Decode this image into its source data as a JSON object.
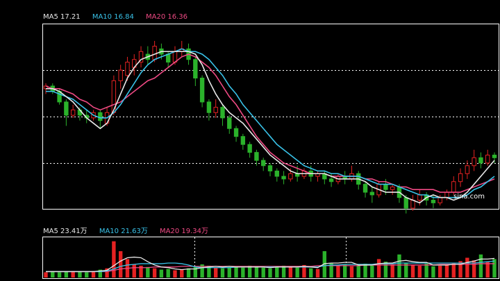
{
  "price_legend": [
    {
      "label": "MA5 17.21",
      "color": "#e8e8e8"
    },
    {
      "label": "MA10 16.84",
      "color": "#39c2e8"
    },
    {
      "label": "MA20 16.36",
      "color": "#ef4a84"
    }
  ],
  "volume_legend": [
    {
      "label": "MA5 23.41万",
      "color": "#e8e8e8"
    },
    {
      "label": "MA10 21.63万",
      "color": "#39c2e8"
    },
    {
      "label": "MA20 19.34万",
      "color": "#ef4a84"
    }
  ],
  "watermark": "sina.com",
  "colors": {
    "background": "#000000",
    "up": "#e52222",
    "down": "#2bb22b",
    "frame": "#ffffff",
    "ma5": "#e8e8e8",
    "ma10": "#39c2e8",
    "ma20": "#ef4a84"
  },
  "chart_data": [
    {
      "type": "candlestick",
      "title": "",
      "ylim": [
        12.0,
        18.9
      ],
      "grid": "horizontal dotted",
      "series": [
        {
          "name": "MA5",
          "values": [
            16.5,
            16.5,
            16.4,
            16.2,
            16.0,
            15.7,
            15.4,
            15.2,
            15.0,
            15.2,
            15.7,
            16.3,
            16.9,
            17.3,
            17.6,
            17.7,
            17.8,
            17.9,
            17.9,
            17.9,
            17.9,
            17.9,
            17.8,
            17.4,
            16.8,
            16.3,
            15.9,
            15.6,
            15.4,
            15.2,
            14.9,
            14.6,
            14.3,
            14.0,
            13.8,
            13.6,
            13.4,
            13.3,
            13.3,
            13.3,
            13.3,
            13.3,
            13.2,
            13.1,
            13.1,
            13.1,
            13.1,
            13.0,
            12.8,
            12.7,
            12.6,
            12.6,
            12.6,
            12.4,
            12.3,
            12.2,
            12.4,
            12.5,
            12.4,
            12.4,
            12.3,
            12.4,
            12.6,
            12.9,
            13.2,
            13.5,
            13.8
          ]
        },
        {
          "name": "MA10",
          "values": [
            16.4,
            16.4,
            16.3,
            16.2,
            16.1,
            15.9,
            15.7,
            15.5,
            15.4,
            15.4,
            15.6,
            15.9,
            16.3,
            16.7,
            17.1,
            17.4,
            17.6,
            17.7,
            17.8,
            17.9,
            18.0,
            17.9,
            17.9,
            17.8,
            17.6,
            17.3,
            17.0,
            16.6,
            16.3,
            15.9,
            15.6,
            15.3,
            15.0,
            14.7,
            14.4,
            14.2,
            14.0,
            13.8,
            13.6,
            13.5,
            13.4,
            13.4,
            13.3,
            13.3,
            13.2,
            13.2,
            13.2,
            13.1,
            13.0,
            12.9,
            12.9,
            12.9,
            12.8,
            12.7,
            12.6,
            12.5,
            12.5,
            12.4,
            12.4,
            12.4,
            12.4,
            12.4,
            12.5,
            12.7,
            12.8,
            13.0,
            13.2
          ]
        },
        {
          "name": "MA20",
          "values": [
            16.6,
            16.5,
            16.5,
            16.4,
            16.3,
            16.1,
            16.0,
            15.8,
            15.7,
            15.8,
            15.9,
            16.0,
            16.2,
            16.4,
            16.6,
            16.8,
            16.9,
            17.1,
            17.3,
            17.5,
            17.7,
            17.8,
            17.7,
            17.5,
            17.3,
            17.0,
            16.6,
            16.2,
            15.9,
            15.5,
            15.1,
            14.7,
            14.4,
            14.1,
            13.9,
            13.7,
            13.6,
            13.5,
            13.4,
            13.3,
            13.3,
            13.3,
            13.2,
            13.2,
            13.2,
            13.2,
            13.2,
            13.1,
            13.1,
            13.0,
            13.0,
            12.9,
            12.8,
            12.8,
            12.7,
            12.7,
            12.7,
            12.7,
            12.6,
            12.6,
            12.6,
            12.6,
            12.7,
            12.8,
            12.9,
            13.0,
            13.1
          ]
        },
        {
          "name": "candles",
          "values": [
            [
              16.5,
              16.6,
              16.3,
              16.7
            ],
            [
              16.6,
              16.4,
              16.3,
              16.7
            ],
            [
              16.4,
              16.0,
              15.9,
              16.5
            ],
            [
              16.0,
              15.5,
              15.1,
              16.1
            ],
            [
              15.5,
              15.7,
              15.4,
              15.9
            ],
            [
              15.7,
              15.5,
              15.3,
              15.8
            ],
            [
              15.5,
              15.4,
              15.2,
              15.7
            ],
            [
              15.4,
              15.6,
              15.3,
              15.7
            ],
            [
              15.6,
              15.3,
              15.0,
              15.7
            ],
            [
              15.2,
              15.6,
              15.1,
              15.8
            ],
            [
              15.6,
              16.8,
              15.5,
              17.0
            ],
            [
              16.8,
              17.2,
              16.5,
              17.4
            ],
            [
              17.0,
              17.5,
              16.8,
              17.7
            ],
            [
              17.3,
              17.6,
              17.0,
              17.8
            ],
            [
              17.5,
              17.9,
              17.3,
              18.1
            ],
            [
              17.8,
              17.6,
              17.4,
              18.1
            ],
            [
              17.6,
              18.1,
              17.5,
              18.3
            ],
            [
              18.0,
              17.8,
              17.6,
              18.2
            ],
            [
              17.8,
              17.5,
              17.3,
              17.9
            ],
            [
              17.5,
              17.9,
              17.4,
              18.1
            ],
            [
              17.9,
              18.0,
              17.7,
              18.3
            ],
            [
              18.0,
              17.6,
              17.4,
              18.2
            ],
            [
              17.6,
              16.9,
              16.6,
              17.7
            ],
            [
              16.9,
              16.0,
              15.8,
              17.0
            ],
            [
              16.0,
              15.6,
              15.3,
              16.1
            ],
            [
              15.6,
              15.8,
              15.4,
              16.1
            ],
            [
              15.8,
              15.4,
              15.1,
              15.9
            ],
            [
              15.4,
              15.0,
              14.8,
              15.5
            ],
            [
              15.0,
              14.7,
              14.5,
              15.1
            ],
            [
              14.7,
              14.4,
              14.2,
              14.8
            ],
            [
              14.4,
              14.1,
              13.9,
              14.5
            ],
            [
              14.1,
              13.8,
              13.6,
              14.2
            ],
            [
              13.8,
              13.6,
              13.4,
              13.9
            ],
            [
              13.6,
              13.4,
              13.2,
              13.7
            ],
            [
              13.4,
              13.2,
              13.0,
              13.5
            ],
            [
              13.2,
              13.1,
              12.9,
              13.4
            ],
            [
              13.1,
              13.3,
              13.0,
              13.5
            ],
            [
              13.3,
              13.2,
              13.0,
              13.6
            ],
            [
              13.2,
              13.4,
              13.1,
              13.5
            ],
            [
              13.4,
              13.2,
              13.0,
              13.6
            ],
            [
              13.2,
              13.3,
              13.0,
              13.4
            ],
            [
              13.3,
              13.1,
              12.9,
              13.4
            ],
            [
              13.1,
              13.0,
              12.8,
              13.3
            ],
            [
              13.0,
              13.2,
              12.9,
              13.3
            ],
            [
              13.2,
              13.1,
              12.9,
              13.4
            ],
            [
              13.1,
              13.3,
              13.0,
              13.6
            ],
            [
              13.3,
              12.9,
              12.7,
              13.4
            ],
            [
              12.9,
              12.6,
              12.4,
              13.0
            ],
            [
              12.6,
              12.5,
              12.2,
              12.8
            ],
            [
              12.5,
              12.9,
              12.4,
              13.0
            ],
            [
              12.9,
              12.7,
              12.5,
              13.1
            ],
            [
              12.7,
              12.8,
              12.5,
              12.9
            ],
            [
              12.8,
              12.4,
              12.2,
              12.9
            ],
            [
              12.4,
              12.0,
              11.8,
              12.5
            ],
            [
              12.0,
              12.3,
              11.9,
              12.5
            ],
            [
              12.3,
              12.5,
              12.1,
              12.7
            ],
            [
              12.5,
              12.3,
              12.1,
              12.6
            ],
            [
              12.3,
              12.2,
              12.0,
              12.5
            ],
            [
              12.2,
              12.4,
              12.1,
              12.5
            ],
            [
              12.4,
              12.6,
              12.3,
              12.7
            ],
            [
              12.6,
              13.0,
              12.5,
              13.2
            ],
            [
              13.0,
              13.3,
              12.8,
              13.5
            ],
            [
              13.3,
              13.6,
              13.1,
              13.8
            ],
            [
              13.6,
              13.9,
              13.4,
              14.2
            ],
            [
              13.9,
              13.7,
              13.5,
              14.1
            ],
            [
              13.7,
              14.0,
              13.6,
              14.2
            ],
            [
              14.0,
              13.9,
              13.7,
              14.1
            ]
          ]
        }
      ]
    },
    {
      "type": "bar",
      "title": "",
      "ylim": [
        0,
        60
      ],
      "grid": "vertical dotted",
      "series": [
        {
          "name": "volume",
          "values": [
            8,
            9,
            8,
            9,
            10,
            9,
            8,
            10,
            12,
            14,
            55,
            40,
            28,
            20,
            18,
            16,
            14,
            12,
            13,
            11,
            12,
            14,
            16,
            20,
            18,
            15,
            14,
            16,
            17,
            15,
            18,
            16,
            15,
            14,
            17,
            18,
            16,
            15,
            19,
            14,
            13,
            40,
            22,
            18,
            20,
            17,
            19,
            21,
            18,
            28,
            24,
            20,
            35,
            22,
            19,
            18,
            21,
            17,
            18,
            20,
            22,
            25,
            30,
            26,
            35,
            24,
            28
          ]
        },
        {
          "name": "MA5",
          "values": [
            9,
            9,
            9,
            9,
            9,
            9,
            9,
            9,
            10,
            11,
            18,
            25,
            30,
            31,
            30,
            24,
            19,
            16,
            15,
            13,
            12,
            13,
            13,
            15,
            16,
            17,
            16,
            17,
            16,
            16,
            16,
            16,
            16,
            15,
            16,
            16,
            16,
            16,
            17,
            16,
            15,
            21,
            22,
            22,
            23,
            23,
            19,
            19,
            19,
            21,
            22,
            22,
            25,
            26,
            24,
            23,
            23,
            19,
            19,
            19,
            20,
            20,
            23,
            25,
            28,
            28,
            29
          ]
        },
        {
          "name": "MA10",
          "values": [
            9,
            9,
            9,
            9,
            9,
            9,
            9,
            9,
            9,
            10,
            13,
            17,
            19,
            20,
            21,
            21,
            21,
            21,
            22,
            22,
            21,
            19,
            16,
            15,
            15,
            15,
            15,
            15,
            16,
            16,
            16,
            16,
            16,
            16,
            16,
            16,
            16,
            16,
            16,
            16,
            16,
            18,
            19,
            19,
            20,
            20,
            20,
            20,
            20,
            21,
            21,
            21,
            22,
            22,
            22,
            22,
            22,
            22,
            22,
            22,
            22,
            22,
            22,
            22,
            23,
            24,
            25
          ]
        },
        {
          "name": "MA20",
          "values": [
            9,
            9,
            9,
            9,
            9,
            9,
            9,
            9,
            9,
            9,
            11,
            13,
            14,
            15,
            15,
            15,
            16,
            16,
            16,
            16,
            17,
            17,
            17,
            17,
            17,
            17,
            17,
            17,
            17,
            17,
            17,
            17,
            17,
            17,
            17,
            17,
            17,
            17,
            17,
            17,
            18,
            18,
            18,
            18,
            18,
            18,
            18,
            19,
            19,
            19,
            19,
            19,
            19,
            19,
            19,
            19,
            19,
            19,
            20,
            20,
            20,
            20,
            20,
            20,
            21,
            21,
            21
          ]
        }
      ]
    }
  ]
}
